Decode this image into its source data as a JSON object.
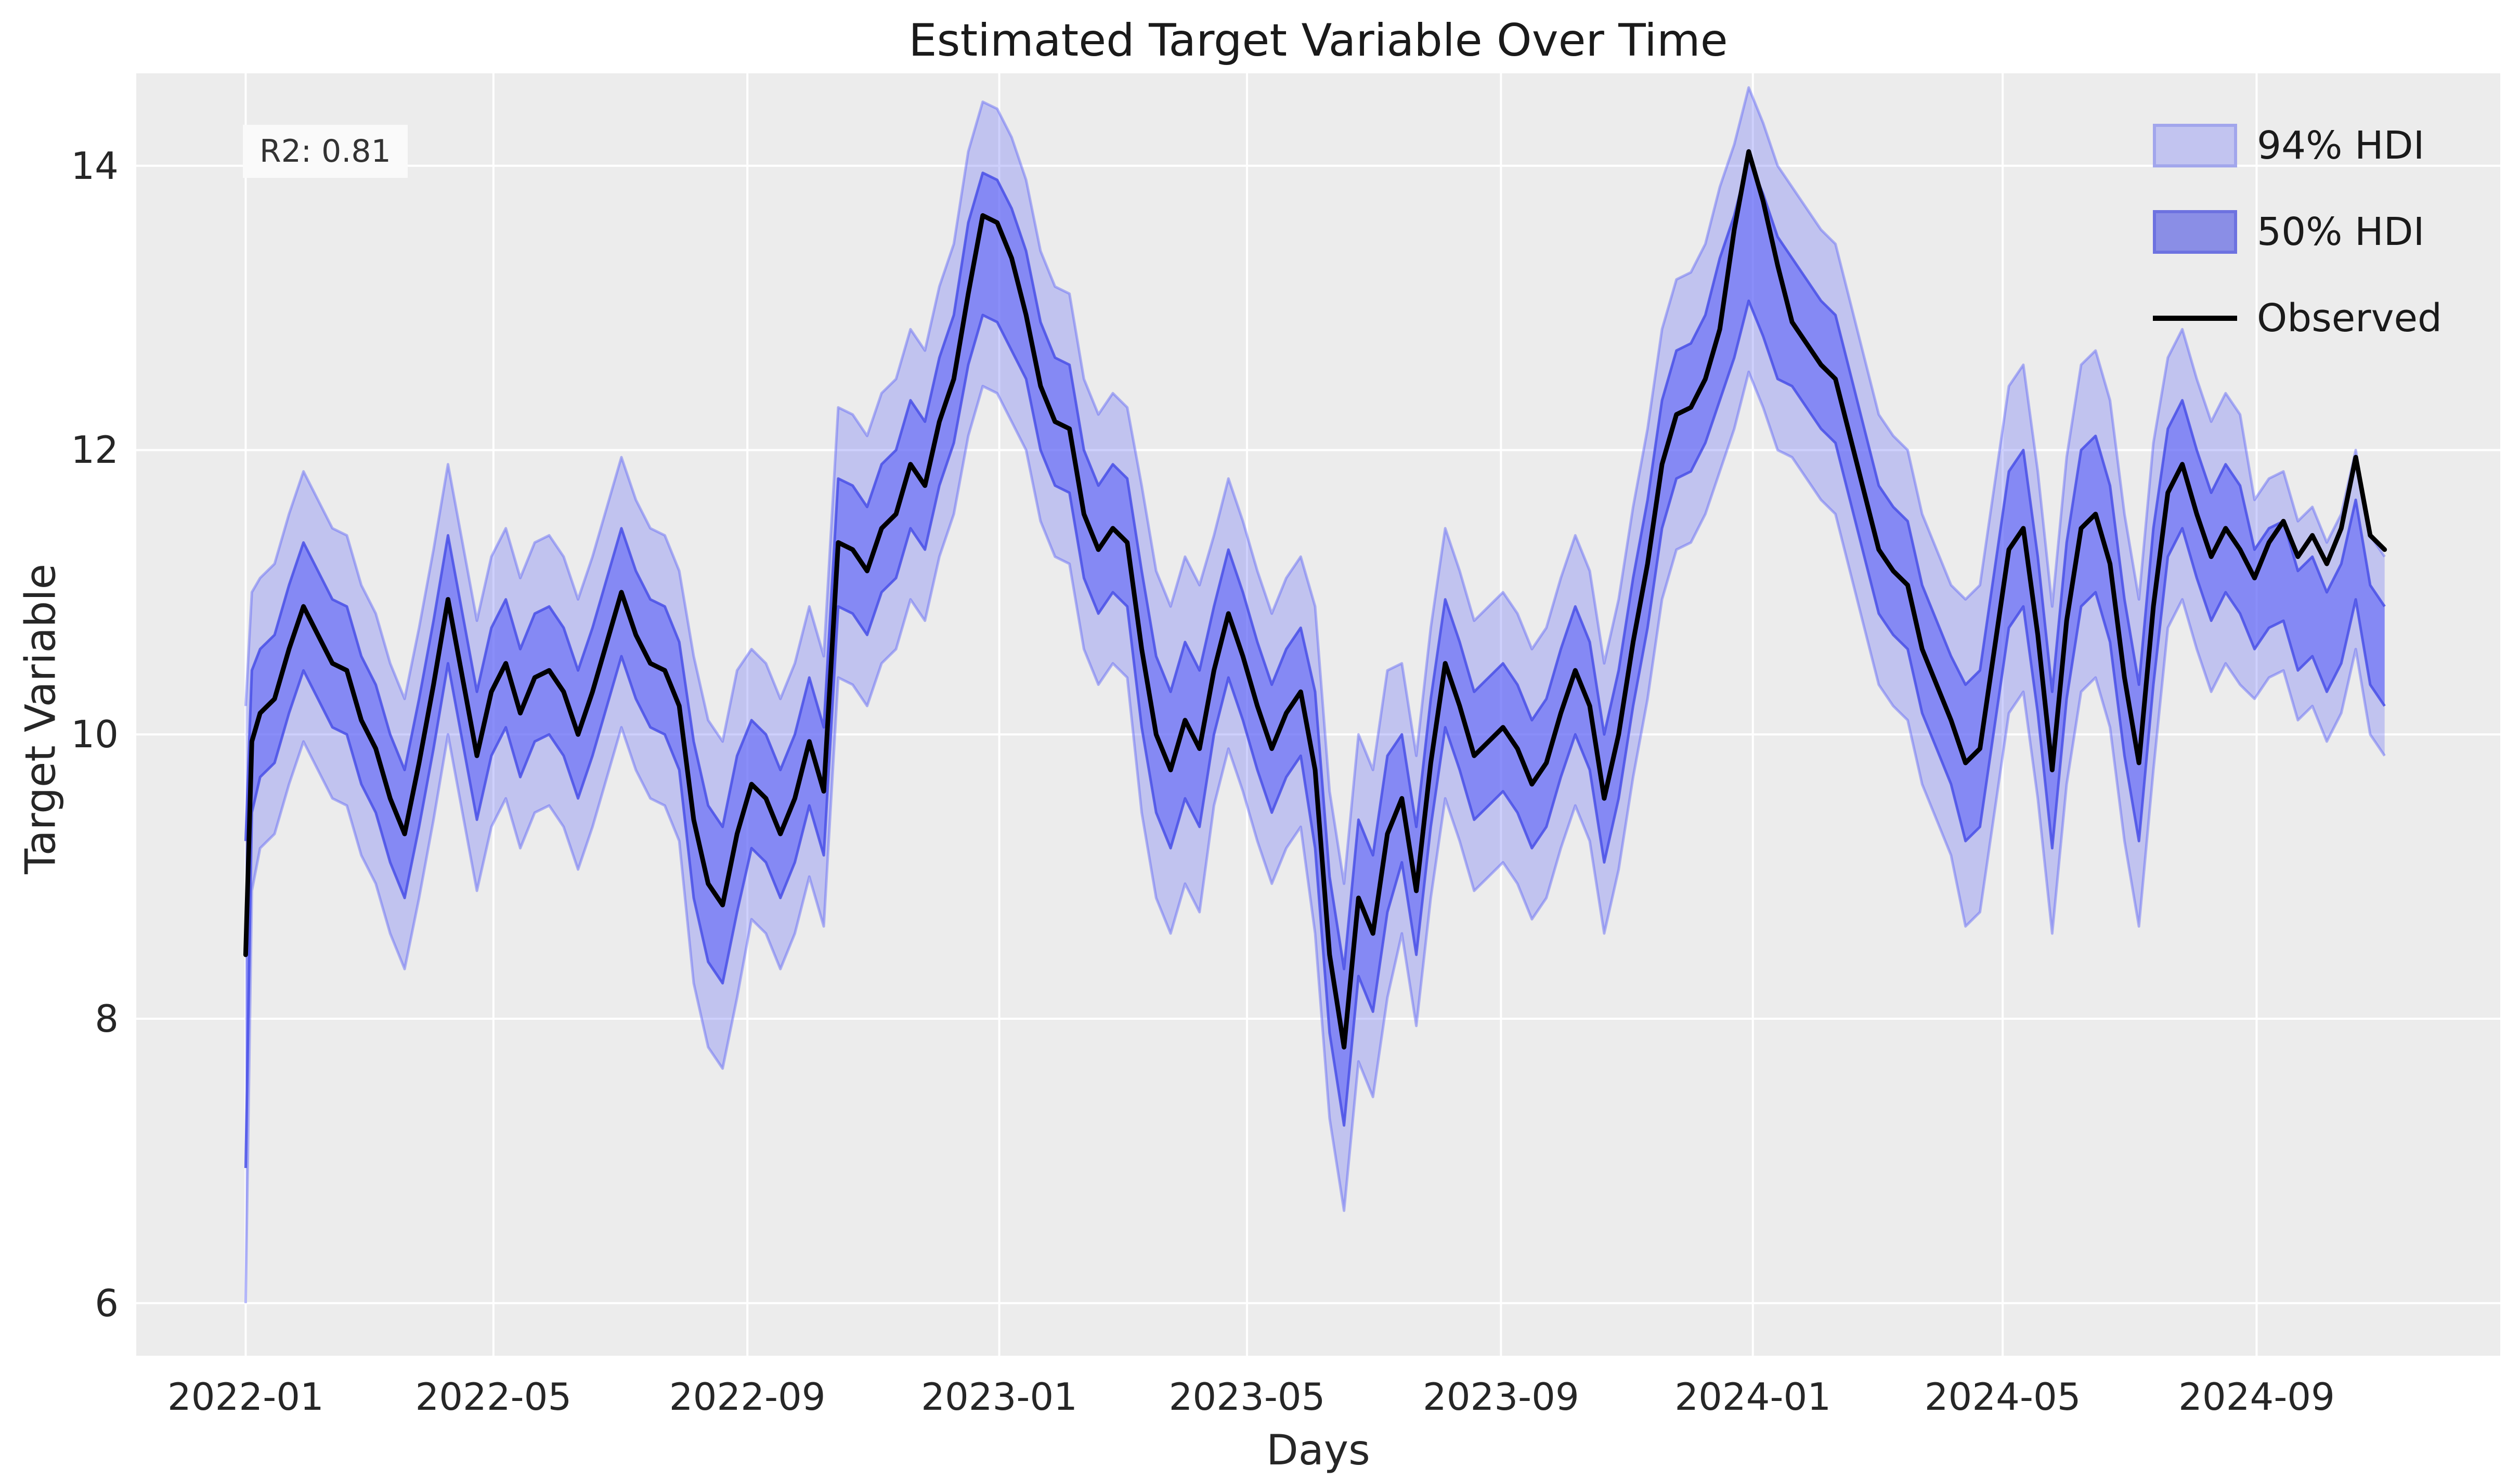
{
  "title": "Estimated Target Variable Over Time",
  "annotation": {
    "r2_label": "R2: 0.81"
  },
  "legend": {
    "items": [
      {
        "label": "94% HDI",
        "swatch": "band-light"
      },
      {
        "label": "50% HDI",
        "swatch": "band-dark"
      },
      {
        "label": "Observed",
        "swatch": "black-line"
      }
    ]
  },
  "colors": {
    "figure_background": "#ffffff",
    "axes_background": "#ececec",
    "gridline": "#ffffff",
    "band_base": "#5d63f6",
    "band94_fill": "rgba(93,99,246,0.30)",
    "band94_edge": "rgba(93,99,246,0.45)",
    "band50_fill": "rgba(93,99,246,0.60)",
    "band50_edge": "rgba(73,80,230,0.85)",
    "observed_line": "#000000",
    "text": "#262626"
  },
  "chart_data": {
    "type": "line",
    "title": "Estimated Target Variable Over Time",
    "xlabel": "Days",
    "ylabel": "Target Variable",
    "legend_position": "upper right",
    "grid": true,
    "x_unit": "days since 2022-01-01",
    "xlim_days": [
      -53,
      1092
    ],
    "ylim": [
      5.63,
      14.65
    ],
    "y_ticks": [
      6,
      8,
      10,
      12,
      14
    ],
    "x_ticks": [
      {
        "label": "2022-01",
        "day": 0
      },
      {
        "label": "2022-05",
        "day": 120
      },
      {
        "label": "2022-09",
        "day": 243
      },
      {
        "label": "2023-01",
        "day": 365
      },
      {
        "label": "2023-05",
        "day": 485
      },
      {
        "label": "2023-09",
        "day": 608
      },
      {
        "label": "2024-01",
        "day": 730
      },
      {
        "label": "2024-05",
        "day": 851
      },
      {
        "label": "2024-09",
        "day": 974
      }
    ],
    "days": [
      0,
      3,
      7,
      14,
      21,
      28,
      35,
      42,
      49,
      56,
      63,
      70,
      77,
      84,
      91,
      98,
      105,
      112,
      119,
      126,
      133,
      140,
      147,
      154,
      161,
      168,
      175,
      182,
      189,
      196,
      203,
      210,
      217,
      224,
      231,
      238,
      245,
      252,
      259,
      266,
      273,
      280,
      287,
      294,
      301,
      308,
      315,
      322,
      329,
      336,
      343,
      350,
      357,
      364,
      371,
      378,
      385,
      392,
      399,
      406,
      413,
      420,
      427,
      434,
      441,
      448,
      455,
      462,
      469,
      476,
      483,
      490,
      497,
      504,
      511,
      518,
      525,
      532,
      539,
      546,
      553,
      560,
      567,
      574,
      581,
      588,
      595,
      602,
      609,
      616,
      623,
      630,
      637,
      644,
      651,
      658,
      665,
      672,
      679,
      686,
      693,
      700,
      707,
      714,
      721,
      728,
      735,
      742,
      749,
      756,
      763,
      770,
      777,
      784,
      791,
      798,
      805,
      812,
      819,
      826,
      833,
      840,
      847,
      854,
      861,
      868,
      875,
      882,
      889,
      896,
      903,
      910,
      917,
      924,
      931,
      938,
      945,
      952,
      959,
      966,
      973,
      980,
      987,
      994,
      1001,
      1008,
      1015,
      1022,
      1029,
      1036
    ],
    "observed": [
      8.45,
      9.95,
      10.15,
      10.25,
      10.6,
      10.9,
      10.7,
      10.5,
      10.45,
      10.1,
      9.9,
      9.55,
      9.3,
      9.8,
      10.35,
      10.95,
      10.4,
      9.85,
      10.3,
      10.5,
      10.15,
      10.4,
      10.45,
      10.3,
      10.0,
      10.3,
      10.65,
      11.0,
      10.7,
      10.5,
      10.45,
      10.2,
      9.4,
      8.95,
      8.8,
      9.3,
      9.65,
      9.55,
      9.3,
      9.55,
      9.95,
      9.6,
      11.35,
      11.3,
      11.15,
      11.45,
      11.55,
      11.9,
      11.75,
      12.2,
      12.5,
      13.1,
      13.65,
      13.6,
      13.35,
      12.95,
      12.45,
      12.2,
      12.15,
      11.55,
      11.3,
      11.45,
      11.35,
      10.6,
      10.0,
      9.75,
      10.1,
      9.9,
      10.45,
      10.85,
      10.55,
      10.2,
      9.9,
      10.15,
      10.3,
      9.75,
      8.45,
      7.8,
      8.85,
      8.6,
      9.3,
      9.55,
      8.9,
      9.8,
      10.5,
      10.2,
      9.85,
      9.95,
      10.05,
      9.9,
      9.65,
      9.8,
      10.15,
      10.45,
      10.2,
      9.55,
      10.0,
      10.65,
      11.2,
      11.9,
      12.25,
      12.3,
      12.5,
      12.85,
      13.55,
      14.1,
      13.75,
      13.3,
      12.9,
      12.75,
      12.6,
      12.5,
      12.1,
      11.7,
      11.3,
      11.15,
      11.05,
      10.6,
      10.35,
      10.1,
      9.8,
      9.9,
      10.6,
      11.3,
      11.45,
      10.7,
      9.75,
      10.8,
      11.45,
      11.55,
      11.2,
      10.4,
      9.8,
      10.9,
      11.7,
      11.9,
      11.55,
      11.25,
      11.45,
      11.3,
      11.1,
      11.35,
      11.5,
      11.25,
      11.4,
      11.2,
      11.45,
      11.95,
      11.4,
      11.3
    ],
    "band_center": [
      8.1,
      9.95,
      10.15,
      10.25,
      10.6,
      10.9,
      10.7,
      10.5,
      10.45,
      10.1,
      9.9,
      9.55,
      9.3,
      9.8,
      10.35,
      10.95,
      10.4,
      9.85,
      10.3,
      10.5,
      10.15,
      10.4,
      10.45,
      10.3,
      10.0,
      10.3,
      10.65,
      11.0,
      10.7,
      10.5,
      10.45,
      10.2,
      9.4,
      8.95,
      8.8,
      9.3,
      9.65,
      9.55,
      9.3,
      9.55,
      9.95,
      9.6,
      11.35,
      11.3,
      11.15,
      11.45,
      11.55,
      11.9,
      11.75,
      12.2,
      12.5,
      13.1,
      13.45,
      13.4,
      13.2,
      12.95,
      12.45,
      12.2,
      12.15,
      11.55,
      11.3,
      11.45,
      11.35,
      10.6,
      10.0,
      9.75,
      10.1,
      9.9,
      10.45,
      10.85,
      10.55,
      10.2,
      9.9,
      10.15,
      10.3,
      9.75,
      8.45,
      7.8,
      8.85,
      8.6,
      9.3,
      9.55,
      8.9,
      9.8,
      10.5,
      10.2,
      9.85,
      9.95,
      10.05,
      9.9,
      9.65,
      9.8,
      10.15,
      10.45,
      10.2,
      9.55,
      10.0,
      10.65,
      11.2,
      11.9,
      12.25,
      12.3,
      12.5,
      12.85,
      13.15,
      13.55,
      13.3,
      13.0,
      12.9,
      12.75,
      12.6,
      12.5,
      12.1,
      11.7,
      11.3,
      11.15,
      11.05,
      10.6,
      10.35,
      10.1,
      9.8,
      9.9,
      10.6,
      11.3,
      11.45,
      10.7,
      9.75,
      10.8,
      11.45,
      11.55,
      11.2,
      10.4,
      9.8,
      10.9,
      11.7,
      11.9,
      11.55,
      11.25,
      11.45,
      11.3,
      10.95,
      11.1,
      11.15,
      10.8,
      10.9,
      10.65,
      10.85,
      11.3,
      10.7,
      10.55
    ],
    "hdi50_halfwidth": [
      1.15,
      0.5,
      0.45,
      0.45,
      0.45,
      0.45,
      0.45,
      0.45,
      0.45,
      0.45,
      0.45,
      0.45,
      0.45,
      0.45,
      0.45,
      0.45,
      0.45,
      0.45,
      0.45,
      0.45,
      0.45,
      0.45,
      0.45,
      0.45,
      0.45,
      0.45,
      0.45,
      0.45,
      0.45,
      0.45,
      0.45,
      0.45,
      0.55,
      0.55,
      0.55,
      0.55,
      0.45,
      0.45,
      0.45,
      0.45,
      0.45,
      0.45,
      0.45,
      0.45,
      0.45,
      0.45,
      0.45,
      0.45,
      0.45,
      0.45,
      0.45,
      0.5,
      0.5,
      0.5,
      0.5,
      0.45,
      0.45,
      0.45,
      0.45,
      0.45,
      0.45,
      0.45,
      0.45,
      0.55,
      0.55,
      0.55,
      0.55,
      0.55,
      0.45,
      0.45,
      0.45,
      0.45,
      0.45,
      0.45,
      0.45,
      0.55,
      0.55,
      0.55,
      0.55,
      0.55,
      0.55,
      0.45,
      0.45,
      0.45,
      0.45,
      0.45,
      0.45,
      0.45,
      0.45,
      0.45,
      0.45,
      0.45,
      0.45,
      0.45,
      0.45,
      0.45,
      0.45,
      0.45,
      0.45,
      0.45,
      0.45,
      0.45,
      0.45,
      0.5,
      0.5,
      0.5,
      0.5,
      0.5,
      0.45,
      0.45,
      0.45,
      0.45,
      0.45,
      0.45,
      0.45,
      0.45,
      0.45,
      0.45,
      0.45,
      0.45,
      0.55,
      0.55,
      0.55,
      0.55,
      0.55,
      0.55,
      0.55,
      0.55,
      0.55,
      0.55,
      0.55,
      0.55,
      0.55,
      0.55,
      0.45,
      0.45,
      0.45,
      0.45,
      0.45,
      0.45,
      0.35,
      0.35,
      0.35,
      0.35,
      0.35,
      0.35,
      0.35,
      0.35,
      0.35,
      0.35
    ],
    "hdi94_halfwidth": [
      2.1,
      1.05,
      0.95,
      0.95,
      0.95,
      0.95,
      0.95,
      0.95,
      0.95,
      0.95,
      0.95,
      0.95,
      0.95,
      0.95,
      0.95,
      0.95,
      0.95,
      0.95,
      0.95,
      0.95,
      0.95,
      0.95,
      0.95,
      0.95,
      0.95,
      0.95,
      0.95,
      0.95,
      0.95,
      0.95,
      0.95,
      0.95,
      1.15,
      1.15,
      1.15,
      1.15,
      0.95,
      0.95,
      0.95,
      0.95,
      0.95,
      0.95,
      0.95,
      0.95,
      0.95,
      0.95,
      0.95,
      0.95,
      0.95,
      0.95,
      0.95,
      1.0,
      1.0,
      1.0,
      1.0,
      0.95,
      0.95,
      0.95,
      0.95,
      0.95,
      0.95,
      0.95,
      0.95,
      1.15,
      1.15,
      1.15,
      1.15,
      1.15,
      0.95,
      0.95,
      0.95,
      0.95,
      0.95,
      0.95,
      0.95,
      1.15,
      1.15,
      1.15,
      1.15,
      1.15,
      1.15,
      0.95,
      0.95,
      0.95,
      0.95,
      0.95,
      0.95,
      0.95,
      0.95,
      0.95,
      0.95,
      0.95,
      0.95,
      0.95,
      0.95,
      0.95,
      0.95,
      0.95,
      0.95,
      0.95,
      0.95,
      0.95,
      0.95,
      1.0,
      1.0,
      1.0,
      1.0,
      1.0,
      0.95,
      0.95,
      0.95,
      0.95,
      0.95,
      0.95,
      0.95,
      0.95,
      0.95,
      0.95,
      0.95,
      0.95,
      1.15,
      1.15,
      1.15,
      1.15,
      1.15,
      1.15,
      1.15,
      1.15,
      1.15,
      1.15,
      1.15,
      1.15,
      1.15,
      1.15,
      0.95,
      0.95,
      0.95,
      0.95,
      0.95,
      0.95,
      0.7,
      0.7,
      0.7,
      0.7,
      0.7,
      0.7,
      0.7,
      0.7,
      0.7,
      0.7
    ]
  },
  "axes": {
    "xlabel": "Days",
    "ylabel": "Target Variable"
  }
}
